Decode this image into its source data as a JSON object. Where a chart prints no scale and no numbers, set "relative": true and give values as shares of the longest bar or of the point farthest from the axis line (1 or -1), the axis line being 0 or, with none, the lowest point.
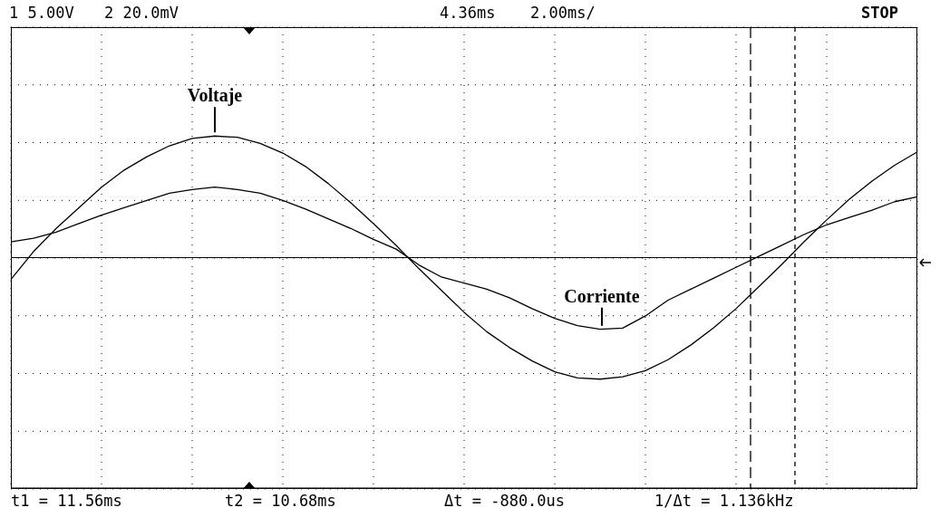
{
  "chart_data": {
    "type": "line",
    "relative": true,
    "categories": [
      null,
      null,
      null,
      null,
      null,
      null,
      null,
      null,
      null,
      null,
      null,
      null,
      null,
      null,
      null,
      null,
      null,
      null,
      null,
      null,
      null,
      null,
      null,
      null,
      null,
      null,
      null,
      null,
      null,
      null,
      null,
      null,
      null,
      null,
      null,
      null,
      null,
      null,
      null,
      null,
      null
    ],
    "series": [
      {
        "name": "Voltaje",
        "color": "#000000",
        "values": [
          -0.18,
          0.05,
          0.24,
          0.41,
          0.58,
          0.72,
          0.83,
          0.92,
          0.98,
          1.0,
          0.99,
          0.94,
          0.86,
          0.75,
          0.61,
          0.45,
          0.28,
          0.1,
          -0.09,
          -0.27,
          -0.45,
          -0.61,
          -0.74,
          -0.85,
          -0.94,
          -0.99,
          -1.0,
          -0.98,
          -0.93,
          -0.84,
          -0.72,
          -0.58,
          -0.42,
          -0.24,
          -0.06,
          0.13,
          0.31,
          0.48,
          0.63,
          0.76,
          0.87
        ]
      },
      {
        "name": "Corriente",
        "color": "#000000",
        "values": [
          0.13,
          0.16,
          0.21,
          0.28,
          0.35,
          0.41,
          0.47,
          0.53,
          0.56,
          0.58,
          0.56,
          0.53,
          0.47,
          0.4,
          0.32,
          0.24,
          0.15,
          0.07,
          -0.06,
          -0.16,
          -0.21,
          -0.26,
          -0.33,
          -0.42,
          -0.5,
          -0.56,
          -0.59,
          -0.58,
          -0.48,
          -0.35,
          -0.26,
          -0.17,
          -0.08,
          0.01,
          0.1,
          0.19,
          0.27,
          0.33,
          0.39,
          0.46,
          0.5
        ]
      }
    ],
    "tick_labels": false,
    "grid": true,
    "marker": "none",
    "line_style": "solid",
    "annotations": [
      "1 5.00V",
      "2 20.0mV",
      "4.36ms",
      "2.00ms/",
      "STOP",
      "t1 = 11.56ms",
      "t2 = 10.68ms",
      "Δt = -880.0us",
      "1/Δt = 1.136kHz"
    ]
  }
}
